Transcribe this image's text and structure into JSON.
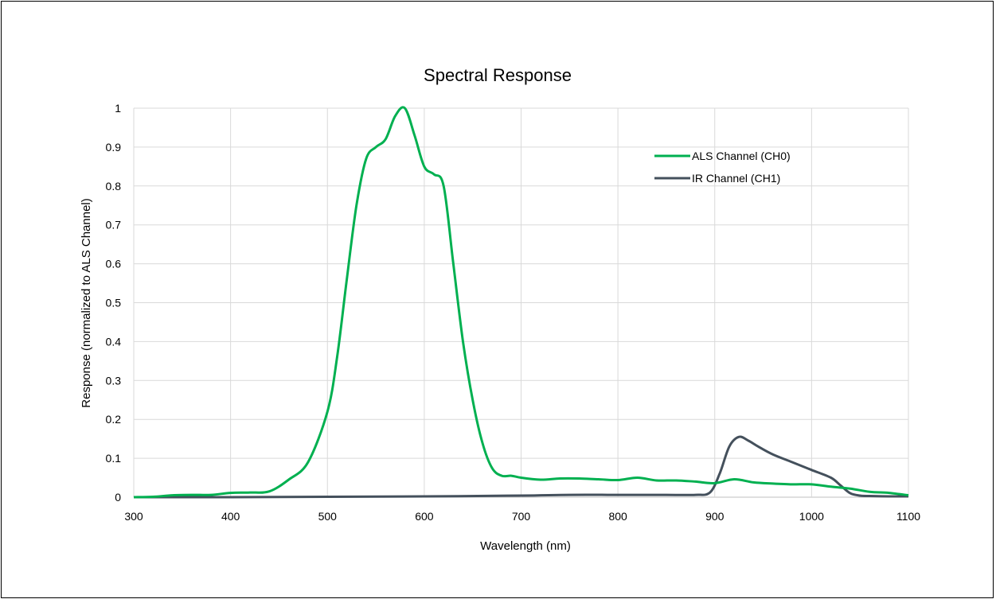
{
  "chart_data": {
    "type": "line",
    "title": "Spectral Response",
    "xlabel": "Wavelength (nm)",
    "ylabel": "Response (normalized to ALS Channel)",
    "xlim": [
      300,
      1100
    ],
    "ylim": [
      0,
      1
    ],
    "xticks": [
      "300",
      "400",
      "500",
      "600",
      "700",
      "800",
      "900",
      "1000",
      "1100"
    ],
    "yticks": [
      "0",
      "0.1",
      "0.2",
      "0.3",
      "0.4",
      "0.5",
      "0.6",
      "0.7",
      "0.8",
      "0.9",
      "1"
    ],
    "grid": true,
    "legend_position": "top-right",
    "series": [
      {
        "name": "ALS Channel (CH0)",
        "color": "#00b050",
        "x": [
          300,
          320,
          340,
          360,
          380,
          400,
          420,
          440,
          460,
          480,
          500,
          510,
          520,
          530,
          540,
          550,
          560,
          570,
          580,
          590,
          600,
          610,
          620,
          630,
          640,
          650,
          660,
          670,
          680,
          690,
          700,
          720,
          740,
          760,
          780,
          800,
          820,
          840,
          860,
          880,
          900,
          920,
          940,
          960,
          980,
          1000,
          1020,
          1040,
          1060,
          1080,
          1100
        ],
        "y": [
          0.0,
          0.001,
          0.005,
          0.006,
          0.006,
          0.011,
          0.012,
          0.015,
          0.045,
          0.09,
          0.22,
          0.36,
          0.56,
          0.75,
          0.87,
          0.9,
          0.92,
          0.98,
          1.0,
          0.93,
          0.85,
          0.83,
          0.8,
          0.6,
          0.4,
          0.25,
          0.14,
          0.075,
          0.055,
          0.055,
          0.05,
          0.045,
          0.048,
          0.048,
          0.046,
          0.044,
          0.05,
          0.043,
          0.043,
          0.04,
          0.036,
          0.046,
          0.038,
          0.035,
          0.033,
          0.033,
          0.027,
          0.022,
          0.014,
          0.011,
          0.005
        ]
      },
      {
        "name": "IR Channel (CH1)",
        "color": "#44505c",
        "x": [
          300,
          400,
          500,
          600,
          700,
          750,
          800,
          850,
          880,
          895,
          905,
          915,
          925,
          935,
          945,
          960,
          980,
          1000,
          1020,
          1030,
          1040,
          1050,
          1060,
          1080,
          1100
        ],
        "y": [
          0.0,
          0.0,
          0.001,
          0.002,
          0.004,
          0.006,
          0.006,
          0.006,
          0.006,
          0.012,
          0.06,
          0.13,
          0.155,
          0.145,
          0.13,
          0.11,
          0.09,
          0.07,
          0.05,
          0.03,
          0.01,
          0.004,
          0.003,
          0.002,
          0.002
        ]
      }
    ]
  }
}
